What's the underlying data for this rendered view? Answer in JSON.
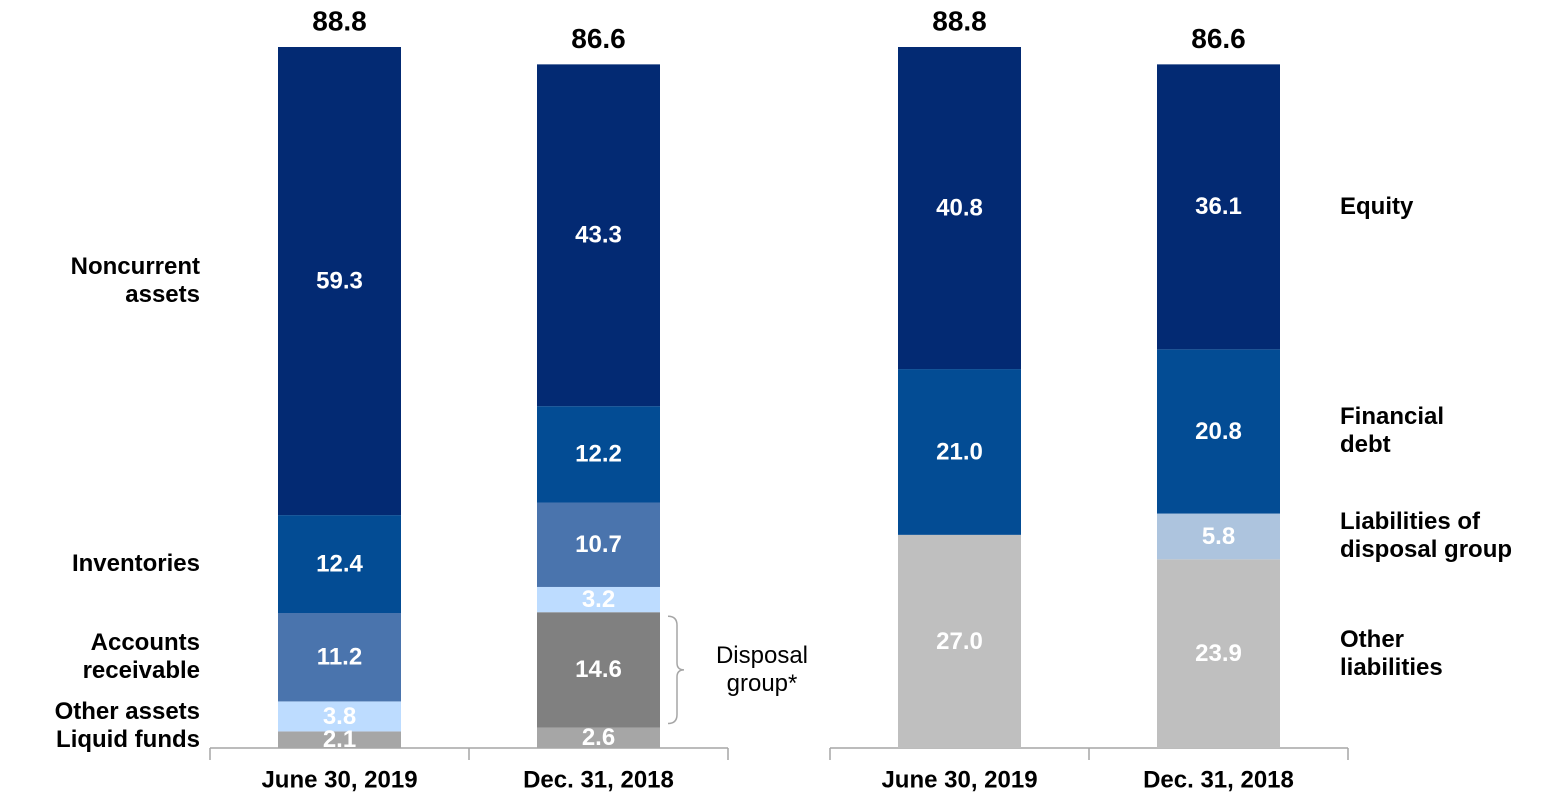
{
  "chart_data": [
    {
      "type": "stacked_bar",
      "categories": [
        "June 30, 2019",
        "Dec. 31, 2018"
      ],
      "totals": [
        88.8,
        86.6
      ],
      "legend": "left",
      "series": [
        {
          "name": "Liquid funds",
          "color": "#a6a6a6",
          "values": [
            2.1,
            2.6
          ]
        },
        {
          "name": "Disposal\ngroup*",
          "color": "#808080",
          "values": [
            null,
            14.6
          ],
          "legend_style": "bracket"
        },
        {
          "name": "Other assets",
          "color": "#bddcff",
          "values": [
            3.8,
            3.2
          ]
        },
        {
          "name": "Accounts\nreceivable",
          "color": "#4a74ad",
          "values": [
            11.2,
            10.7
          ]
        },
        {
          "name": "Inventories",
          "color": "#034c94",
          "values": [
            12.4,
            12.2
          ]
        },
        {
          "name": "Noncurrent\nassets",
          "color": "#032a73",
          "values": [
            59.3,
            43.3
          ]
        }
      ]
    },
    {
      "type": "stacked_bar",
      "categories": [
        "June 30, 2019",
        "Dec. 31, 2018"
      ],
      "totals": [
        88.8,
        86.6
      ],
      "legend": "right",
      "series": [
        {
          "name": "Other\nliabilities",
          "color": "#bfbfbf",
          "values": [
            27.0,
            23.9
          ],
          "value_labels": [
            "27.0",
            "23.9"
          ]
        },
        {
          "name": "Liabilities of\ndisposal group",
          "color": "#adc4de",
          "values": [
            null,
            5.8
          ]
        },
        {
          "name": "Financial\ndebt",
          "color": "#034c94",
          "values": [
            21.0,
            20.8
          ],
          "value_labels": [
            "21.0",
            "20.8"
          ]
        },
        {
          "name": "Equity",
          "color": "#032a73",
          "values": [
            40.8,
            36.1
          ]
        }
      ]
    }
  ]
}
